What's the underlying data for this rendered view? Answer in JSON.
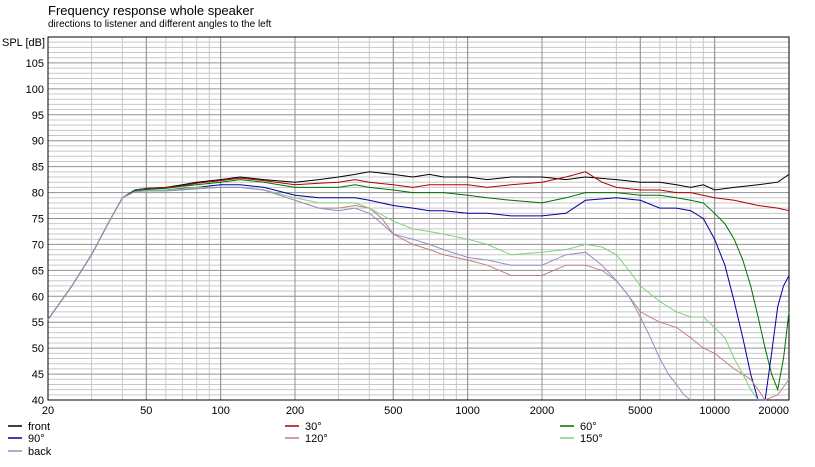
{
  "chart_data": {
    "type": "line",
    "title": "Frequency response whole speaker",
    "subtitle": "directions to listener and different angles to the left",
    "ylabel": "SPL [dB]",
    "xlabel": "",
    "x_scale": "log",
    "xlim": [
      20,
      20000
    ],
    "ylim": [
      40,
      110
    ],
    "y_ticks": [
      40,
      45,
      50,
      55,
      60,
      65,
      70,
      75,
      80,
      85,
      90,
      95,
      100,
      105
    ],
    "x_ticks": [
      20,
      50,
      100,
      200,
      500,
      1000,
      2000,
      5000,
      10000,
      20000
    ],
    "x_tick_labels": [
      "20",
      "50",
      "100",
      "200",
      "500",
      "1000",
      "2000",
      "5000",
      "10000",
      "20000"
    ],
    "grid": true,
    "legend_position": "bottom",
    "series": [
      {
        "name": "front",
        "color": "#000000",
        "x": [
          20,
          25,
          30,
          35,
          40,
          45,
          50,
          60,
          70,
          80,
          100,
          120,
          150,
          200,
          250,
          300,
          350,
          400,
          500,
          600,
          700,
          800,
          1000,
          1200,
          1500,
          2000,
          2500,
          3000,
          4000,
          5000,
          6000,
          7000,
          8000,
          9000,
          10000,
          12000,
          15000,
          18000,
          20000
        ],
        "values": [
          55.5,
          62,
          68,
          74,
          79,
          80.5,
          80.8,
          81,
          81.5,
          82,
          82.5,
          83,
          82.5,
          82,
          82.5,
          83,
          83.5,
          84,
          83.5,
          83,
          83.5,
          83,
          83,
          82.5,
          83,
          83,
          82.5,
          83,
          82.5,
          82,
          82,
          81.5,
          81,
          81.5,
          80.5,
          81,
          81.5,
          82,
          83.5
        ]
      },
      {
        "name": "30°",
        "color": "#b00000",
        "x": [
          20,
          25,
          30,
          35,
          40,
          45,
          50,
          60,
          70,
          80,
          100,
          120,
          150,
          200,
          250,
          300,
          350,
          400,
          500,
          600,
          700,
          800,
          1000,
          1200,
          1500,
          2000,
          2500,
          3000,
          3500,
          4000,
          5000,
          6000,
          7000,
          8000,
          10000,
          12000,
          15000,
          18000,
          20000
        ],
        "values": [
          55.5,
          62,
          68,
          74,
          79,
          80.5,
          80.8,
          81,
          81.3,
          81.8,
          82.3,
          82.8,
          82.3,
          81.5,
          81.8,
          82,
          82.5,
          82,
          81.5,
          81,
          81.5,
          81.5,
          81.5,
          81,
          81.5,
          82,
          83,
          84,
          82,
          81,
          80.5,
          80.5,
          80,
          80,
          79,
          78.5,
          77.5,
          77,
          76.5
        ]
      },
      {
        "name": "60°",
        "color": "#007000",
        "x": [
          20,
          25,
          30,
          35,
          40,
          45,
          50,
          60,
          70,
          80,
          100,
          120,
          150,
          200,
          250,
          300,
          350,
          400,
          500,
          600,
          700,
          800,
          1000,
          1200,
          1500,
          2000,
          2500,
          3000,
          4000,
          5000,
          6000,
          7000,
          8000,
          9000,
          10000,
          11000,
          12000,
          13000,
          14000,
          15000,
          16000,
          17000,
          18000,
          19000,
          20000
        ],
        "values": [
          55.5,
          62,
          68,
          74,
          79,
          80.5,
          80.7,
          80.8,
          81.2,
          81.5,
          82,
          82.5,
          82,
          81,
          81,
          81,
          81.5,
          81,
          80.5,
          80,
          80,
          80,
          79.5,
          79,
          78.5,
          78,
          79,
          80,
          80,
          79.5,
          79.5,
          79,
          78.5,
          78,
          76,
          74,
          71,
          67,
          62,
          56,
          50,
          45,
          42,
          48,
          57
        ]
      },
      {
        "name": "90°",
        "color": "#0000a0",
        "x": [
          20,
          25,
          30,
          35,
          40,
          45,
          50,
          60,
          70,
          80,
          100,
          120,
          150,
          200,
          250,
          300,
          350,
          400,
          500,
          600,
          700,
          800,
          1000,
          1200,
          1500,
          2000,
          2500,
          3000,
          4000,
          5000,
          6000,
          7000,
          8000,
          9000,
          10000,
          11000,
          12000,
          13000,
          14000,
          15000,
          16000,
          17000,
          18000,
          19000,
          20000
        ],
        "values": [
          55.5,
          62,
          68,
          74,
          79,
          80.3,
          80.5,
          80.5,
          80.8,
          81,
          81.5,
          81.5,
          81,
          79.5,
          79,
          79,
          79,
          78.5,
          77.5,
          77,
          76.5,
          76.5,
          76,
          76,
          75.5,
          75.5,
          76,
          78.5,
          79,
          78.5,
          77,
          77,
          76.5,
          75,
          71,
          66,
          59,
          52,
          45,
          40,
          40,
          49,
          58,
          62,
          64
        ]
      },
      {
        "name": "120°",
        "color": "#c08080",
        "x": [
          20,
          25,
          30,
          35,
          40,
          45,
          50,
          60,
          70,
          80,
          100,
          120,
          150,
          200,
          250,
          300,
          350,
          400,
          450,
          500,
          600,
          700,
          800,
          1000,
          1200,
          1500,
          2000,
          2500,
          3000,
          3500,
          4000,
          4500,
          5000,
          6000,
          7000,
          8000,
          9000,
          10000,
          12000,
          14000,
          15000,
          16000,
          18000,
          20000
        ],
        "values": [
          55.5,
          62,
          68,
          74,
          79,
          80.2,
          80.4,
          80.4,
          80.6,
          80.8,
          81,
          81,
          80.5,
          78.5,
          77,
          77,
          77.5,
          77,
          75,
          72,
          70,
          69,
          68,
          67,
          66,
          64,
          64,
          66,
          66,
          65,
          63,
          60,
          57,
          55,
          54,
          52,
          50,
          49,
          46,
          44,
          42,
          40,
          41,
          44
        ]
      },
      {
        "name": "150°",
        "color": "#80d080",
        "x": [
          20,
          25,
          30,
          35,
          40,
          45,
          50,
          60,
          70,
          80,
          100,
          120,
          150,
          200,
          250,
          300,
          350,
          400,
          500,
          600,
          700,
          800,
          1000,
          1200,
          1500,
          2000,
          2500,
          3000,
          3500,
          4000,
          4500,
          5000,
          6000,
          7000,
          8000,
          9000,
          10000,
          11000,
          12000,
          13000,
          14000,
          15000
        ],
        "values": [
          55.5,
          62,
          68,
          74,
          79,
          80.2,
          80.4,
          80.5,
          80.7,
          81,
          81,
          81,
          80.5,
          79,
          78,
          78,
          78,
          77,
          74.5,
          73,
          72.5,
          72,
          71,
          70,
          68,
          68.5,
          69,
          70,
          69.5,
          68,
          65,
          62,
          59,
          57,
          56,
          56,
          54,
          52,
          48,
          45,
          42,
          40
        ]
      },
      {
        "name": "back",
        "color": "#9090c0",
        "x": [
          20,
          25,
          30,
          35,
          40,
          45,
          50,
          60,
          70,
          80,
          100,
          120,
          150,
          200,
          250,
          300,
          350,
          400,
          450,
          500,
          600,
          700,
          800,
          1000,
          1200,
          1500,
          2000,
          2500,
          3000,
          3500,
          4000,
          4500,
          5000,
          5500,
          6000,
          6500,
          7000,
          7500,
          8000
        ],
        "values": [
          55.5,
          62,
          68,
          74,
          79,
          80.2,
          80.3,
          80.3,
          80.5,
          80.7,
          81,
          81,
          80.5,
          78.5,
          77,
          76.5,
          77,
          76,
          74,
          72,
          71,
          70,
          69,
          67.5,
          67,
          66,
          66,
          68,
          68.5,
          66,
          63,
          60,
          56,
          52,
          48,
          45,
          43,
          41,
          40
        ]
      }
    ]
  }
}
